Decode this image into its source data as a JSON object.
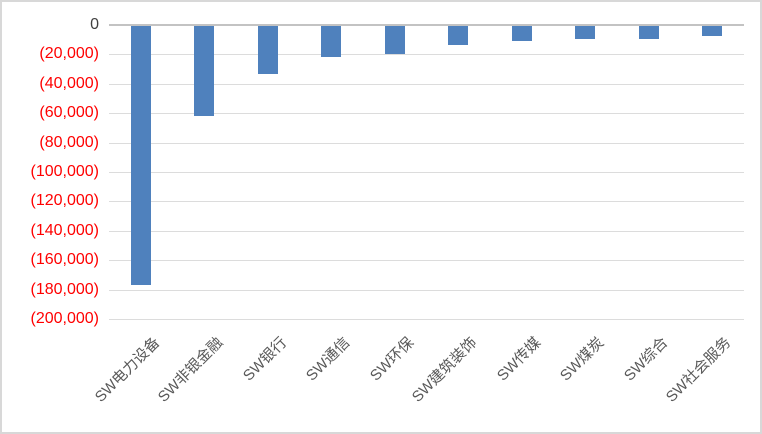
{
  "chart_data": {
    "type": "bar",
    "title": "",
    "xlabel": "",
    "ylabel": "",
    "categories": [
      "SW电力设备",
      "SW非银金融",
      "SW银行",
      "SW通信",
      "SW环保",
      "SW建筑装饰",
      "SW传媒",
      "SW煤炭",
      "SW综合",
      "SW社会服务"
    ],
    "values": [
      -176000,
      -61500,
      -32500,
      -21000,
      -18800,
      -13200,
      -10200,
      -9100,
      -8600,
      -6900
    ],
    "ylim": [
      -200000,
      0
    ],
    "ytick_interval": 20000,
    "ytick_labels": [
      "0",
      "(20,000)",
      "(40,000)",
      "(60,000)",
      "(80,000)",
      "(100,000)",
      "(120,000)",
      "(140,000)",
      "(160,000)",
      "(180,000)",
      "(200,000)"
    ],
    "grid": true,
    "legend": false,
    "bar_color": "#4f81bd",
    "gridline_color": "#dcdcdc",
    "zero_line_color": "#c3c3c3",
    "negative_tick_color": "#ff0000",
    "zero_tick_color": "#404040",
    "category_label_color": "#595959"
  }
}
